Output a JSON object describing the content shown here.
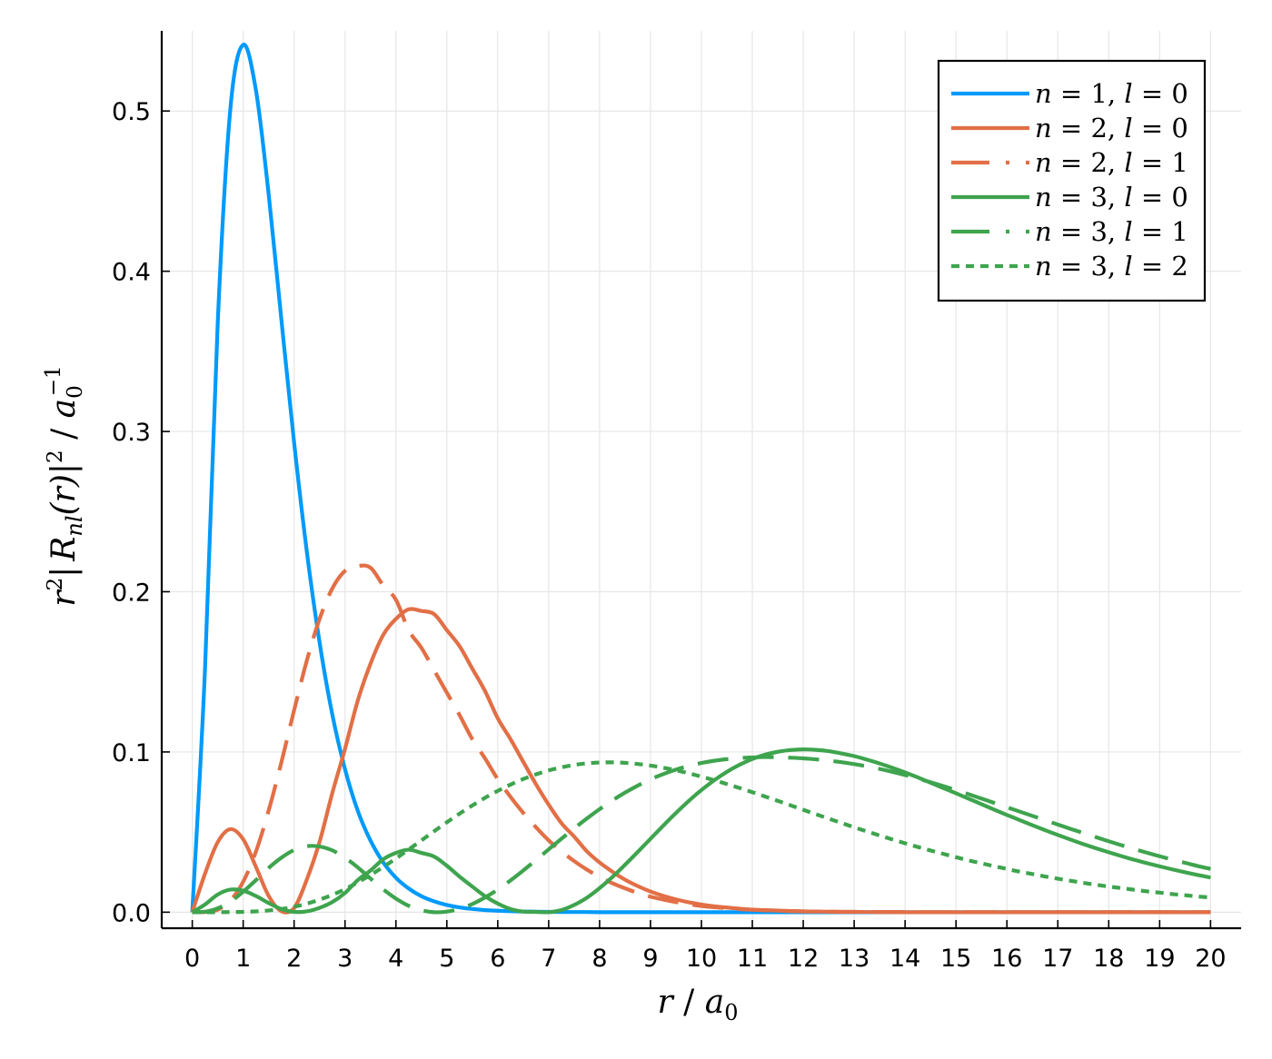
{
  "chart_data": {
    "type": "line",
    "title": "",
    "xlabel": "r / a0",
    "ylabel": "r²|Rnl(r)|² / a0⁻¹",
    "xlabel_parts": {
      "var": "r",
      "sep": " / ",
      "unit": "a",
      "sub": "0"
    },
    "ylabel_parts": {
      "pre": "r",
      "pre_sup": "2",
      "bar": "|",
      "func": "R",
      "func_sub": "nl",
      "arg": "(r)",
      "bar2": "|",
      "post_sup": "2",
      "sep": " / ",
      "unit": "a",
      "unit_sub": "0",
      "unit_sup": "−1"
    },
    "xlim": [
      -0.6,
      20.6
    ],
    "ylim": [
      -0.01,
      0.55
    ],
    "x_ticks": [
      0,
      1,
      2,
      3,
      4,
      5,
      6,
      7,
      8,
      9,
      10,
      11,
      12,
      13,
      14,
      15,
      16,
      17,
      18,
      19,
      20
    ],
    "x_tick_labels": [
      "0",
      "1",
      "2",
      "3",
      "4",
      "5",
      "6",
      "7",
      "8",
      "9",
      "10",
      "11",
      "12",
      "13",
      "14",
      "15",
      "16",
      "17",
      "18",
      "19",
      "20"
    ],
    "y_ticks": [
      0.0,
      0.1,
      0.2,
      0.3,
      0.4,
      0.5
    ],
    "y_tick_labels": [
      "0.0",
      "0.1",
      "0.2",
      "0.3",
      "0.4",
      "0.5"
    ],
    "grid": true,
    "legend_position": "top-right",
    "x": [
      0,
      0.25,
      0.5,
      0.75,
      1,
      1.25,
      1.5,
      1.75,
      2,
      2.25,
      2.5,
      2.75,
      3,
      3.25,
      3.5,
      3.75,
      4,
      4.25,
      4.5,
      4.75,
      5,
      5.25,
      5.5,
      5.75,
      6,
      6.25,
      6.5,
      6.75,
      7,
      7.25,
      7.5,
      7.75,
      8,
      8.25,
      8.5,
      8.75,
      9,
      9.25,
      9.5,
      9.75,
      10,
      10.25,
      10.5,
      10.75,
      11,
      11.25,
      11.5,
      11.75,
      12,
      12.25,
      12.5,
      12.75,
      13,
      13.25,
      13.5,
      13.75,
      14,
      14.25,
      14.5,
      14.75,
      15,
      15.25,
      15.5,
      15.75,
      16,
      16.25,
      16.5,
      16.75,
      17,
      17.25,
      17.5,
      17.75,
      18,
      18.25,
      18.5,
      18.75,
      19,
      19.25,
      19.5,
      19.75,
      20
    ],
    "series": [
      {
        "name": "n = 1, l = 0",
        "legend": {
          "n": "1",
          "l": "0"
        },
        "color": "#009AFA",
        "dash": "solid",
        "values": [
          0,
          0.1516,
          0.3679,
          0.502,
          0.5413,
          0.513,
          0.4481,
          0.3698,
          0.2931,
          0.225,
          0.1684,
          0.1234,
          0.0892,
          0.0633,
          0.0447,
          0.0311,
          0.0215,
          0.0148,
          0.01,
          0.0068,
          0.0045,
          0.003,
          0.002,
          0.0013,
          0.0009,
          0.0006,
          0.0004,
          0.0003,
          0.0002,
          0.0001,
          0.0001,
          0.0001,
          0,
          0,
          0,
          0,
          0,
          0,
          0,
          0,
          0,
          0,
          0,
          0,
          0,
          0,
          0,
          0,
          0,
          0,
          0,
          0,
          0,
          0,
          0,
          0,
          0,
          0,
          0,
          0,
          0,
          0,
          0,
          0,
          0,
          0,
          0,
          0,
          0,
          0,
          0,
          0,
          0,
          0,
          0,
          0,
          0,
          0,
          0,
          0,
          0
        ]
      },
      {
        "name": "n = 2, l = 0",
        "legend": {
          "n": "2",
          "l": "0"
        },
        "color": "#E26F46",
        "dash": "solid",
        "values": [
          0,
          0.024,
          0.0437,
          0.0518,
          0.0455,
          0.0283,
          0.0102,
          0.0006,
          0.0026,
          0.0204,
          0.0439,
          0.0743,
          0.102,
          0.132,
          0.155,
          0.173,
          0.183,
          0.189,
          0.188,
          0.186,
          0.176,
          0.166,
          0.152,
          0.138,
          0.121,
          0.108,
          0.0939,
          0.0799,
          0.0671,
          0.0556,
          0.0472,
          0.038,
          0.031,
          0.0253,
          0.0203,
          0.0163,
          0.0129,
          0.0102,
          0.008,
          0.0062,
          0.0048,
          0.0037,
          0.0029,
          0.0022,
          0.0016,
          0.0013,
          0.001,
          0.0007,
          0.0005,
          0.0004,
          0.0003,
          0.0002,
          0.0002,
          0.0001,
          0.0001,
          0.0001,
          0,
          0,
          0,
          0,
          0,
          0,
          0,
          0,
          0,
          0,
          0,
          0,
          0,
          0,
          0,
          0,
          0,
          0,
          0,
          0,
          0,
          0,
          0,
          0,
          0
        ]
      },
      {
        "name": "n = 2, l = 1",
        "legend": {
          "n": "2",
          "l": "1"
        },
        "color": "#E26F46",
        "dash": "dashdot",
        "values": [
          0,
          0.0001,
          0.0016,
          0.0073,
          0.019,
          0.0378,
          0.0634,
          0.0935,
          0.126,
          0.157,
          0.183,
          0.202,
          0.213,
          0.216,
          0.215,
          0.204,
          0.195,
          0.176,
          0.165,
          0.151,
          0.137,
          0.123,
          0.108,
          0.096,
          0.083,
          0.072,
          0.062,
          0.053,
          0.0448,
          0.038,
          0.0319,
          0.0266,
          0.022,
          0.0181,
          0.0149,
          0.012,
          0.0097,
          0.0079,
          0.0063,
          0.005,
          0.0039,
          0.0031,
          0.0025,
          0.0019,
          0.0015,
          0.0011,
          0.0009,
          0.0007,
          0.0005,
          0.0004,
          0.0003,
          0.0002,
          0.0002,
          0.0001,
          0.0001,
          0.0001,
          0,
          0,
          0,
          0,
          0,
          0,
          0,
          0,
          0,
          0,
          0,
          0,
          0,
          0,
          0,
          0,
          0,
          0,
          0,
          0,
          0,
          0,
          0,
          0,
          0
        ]
      },
      {
        "name": "n = 3, l = 0",
        "legend": {
          "n": "3",
          "l": "0"
        },
        "color": "#3EA44E",
        "dash": "solid",
        "values": [
          0,
          0.0048,
          0.011,
          0.0141,
          0.0134,
          0.0101,
          0.0057,
          0.002,
          0.0002,
          0.0005,
          0.0027,
          0.0063,
          0.012,
          0.02,
          0.026,
          0.033,
          0.037,
          0.039,
          0.037,
          0.0347,
          0.029,
          0.0222,
          0.016,
          0.01,
          0.0054,
          0.002,
          0.0004,
          0.0002,
          0.0,
          0.0013,
          0.0045,
          0.009,
          0.015,
          0.0219,
          0.0296,
          0.0376,
          0.0458,
          0.054,
          0.0619,
          0.0694,
          0.0762,
          0.0823,
          0.0876,
          0.092,
          0.0956,
          0.0983,
          0.1001,
          0.1012,
          0.1016,
          0.1013,
          0.1005,
          0.0991,
          0.0974,
          0.0952,
          0.0928,
          0.0901,
          0.0872,
          0.0841,
          0.0808,
          0.0775,
          0.0742,
          0.0708,
          0.0674,
          0.064,
          0.0607,
          0.0575,
          0.0543,
          0.0512,
          0.0482,
          0.0453,
          0.0425,
          0.0399,
          0.0374,
          0.035,
          0.0327,
          0.0306,
          0.0286,
          0.0267,
          0.0249,
          0.0232,
          0.0216
        ]
      },
      {
        "name": "n = 3, l = 1",
        "legend": {
          "n": "3",
          "l": "1"
        },
        "color": "#3EA44E",
        "dash": "dashdot",
        "values": [
          0,
          0.0003,
          0.0024,
          0.0066,
          0.0128,
          0.02,
          0.0276,
          0.034,
          0.0388,
          0.0412,
          0.041,
          0.0386,
          0.034,
          0.028,
          0.021,
          0.0143,
          0.0085,
          0.004,
          0.0012,
          0.0,
          0.0004,
          0.0021,
          0.0051,
          0.0092,
          0.0141,
          0.0198,
          0.026,
          0.0325,
          0.0392,
          0.0458,
          0.0523,
          0.0585,
          0.0643,
          0.0697,
          0.0746,
          0.079,
          0.0829,
          0.0862,
          0.089,
          0.0913,
          0.0931,
          0.0945,
          0.0955,
          0.0962,
          0.0966,
          0.0968,
          0.0967,
          0.0964,
          0.096,
          0.0954,
          0.0946,
          0.0936,
          0.0924,
          0.091,
          0.0894,
          0.0876,
          0.0856,
          0.0834,
          0.0811,
          0.0787,
          0.0762,
          0.0736,
          0.0709,
          0.0682,
          0.0655,
          0.0628,
          0.0601,
          0.0574,
          0.0547,
          0.052,
          0.0494,
          0.0468,
          0.0443,
          0.0418,
          0.0394,
          0.0371,
          0.0349,
          0.0328,
          0.0308,
          0.0288,
          0.027
        ]
      },
      {
        "name": "n = 3, l = 2",
        "legend": {
          "n": "3",
          "l": "2"
        },
        "color": "#3EA44E",
        "dash": "dotted",
        "values": [
          0,
          0,
          0,
          0.0001,
          0.0002,
          0.0005,
          0.0011,
          0.002,
          0.0034,
          0.0053,
          0.0078,
          0.0108,
          0.0144,
          0.0186,
          0.0232,
          0.0282,
          0.0335,
          0.0391,
          0.0448,
          0.0505,
          0.0561,
          0.0615,
          0.0666,
          0.0714,
          0.0757,
          0.0796,
          0.0831,
          0.086,
          0.0885,
          0.0904,
          0.0919,
          0.0929,
          0.0934,
          0.0935,
          0.0932,
          0.0925,
          0.0915,
          0.0902,
          0.0886,
          0.0867,
          0.0846,
          0.0824,
          0.08,
          0.0775,
          0.0749,
          0.0722,
          0.0695,
          0.0667,
          0.0639,
          0.0611,
          0.0584,
          0.0557,
          0.053,
          0.0504,
          0.0479,
          0.0454,
          0.043,
          0.0407,
          0.0385,
          0.0364,
          0.0343,
          0.0323,
          0.0305,
          0.0287,
          0.027,
          0.0253,
          0.0238,
          0.0223,
          0.0209,
          0.0196,
          0.0183,
          0.0171,
          0.016,
          0.015,
          0.014,
          0.013,
          0.0122,
          0.0113,
          0.0106,
          0.0098,
          0.0092
        ]
      }
    ]
  }
}
